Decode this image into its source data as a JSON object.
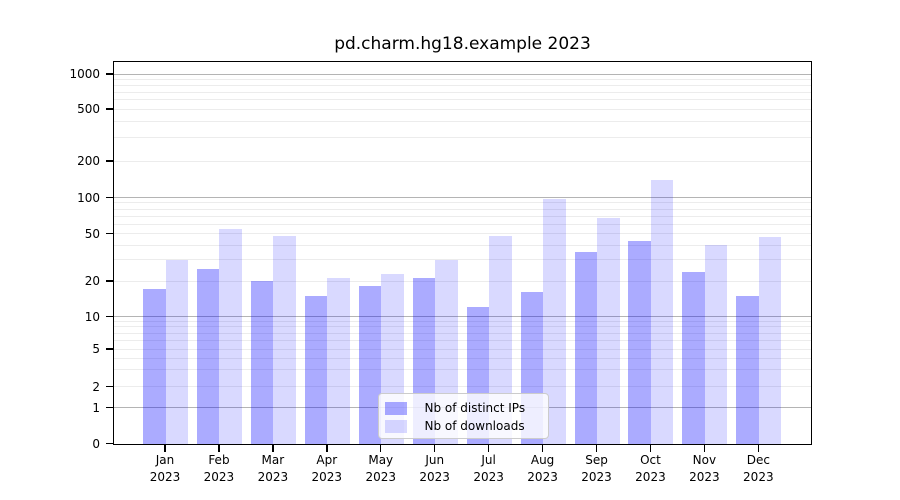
{
  "chart_data": {
    "type": "bar",
    "title": "pd.charm.hg18.example 2023",
    "categories": [
      "Jan 2023",
      "Feb 2023",
      "Mar 2023",
      "Apr 2023",
      "May 2023",
      "Jun 2023",
      "Jul 2023",
      "Aug 2023",
      "Sep 2023",
      "Oct 2023",
      "Nov 2023",
      "Dec 2023"
    ],
    "series": [
      {
        "name": "Nb of distinct IPs",
        "color": "rgba(0,0,255,0.33)",
        "values": [
          17,
          25,
          20,
          15,
          18,
          21,
          12,
          16,
          35,
          43,
          24,
          15
        ]
      },
      {
        "name": "Nb of downloads",
        "color": "rgba(0,0,255,0.15)",
        "values": [
          30,
          55,
          48,
          21,
          23,
          30,
          48,
          98,
          68,
          140,
          40,
          47
        ]
      }
    ],
    "y_axis": {
      "scale": "symlog",
      "ticks": [
        0,
        1,
        2,
        5,
        10,
        20,
        50,
        100,
        200,
        500,
        1000
      ],
      "major_gridlines": [
        1,
        10,
        100,
        1000
      ],
      "minor_gridlines": [
        2,
        3,
        4,
        5,
        6,
        7,
        8,
        9,
        20,
        30,
        40,
        50,
        60,
        70,
        80,
        90,
        200,
        300,
        400,
        500,
        600,
        700,
        800,
        900
      ],
      "ylim": [
        0,
        1200
      ]
    },
    "legend": {
      "position": "lower center"
    },
    "grid": "on",
    "colors": {
      "major_grid": "#b4b4b4",
      "minor_grid": "#ececec",
      "spine": "#000000"
    }
  }
}
